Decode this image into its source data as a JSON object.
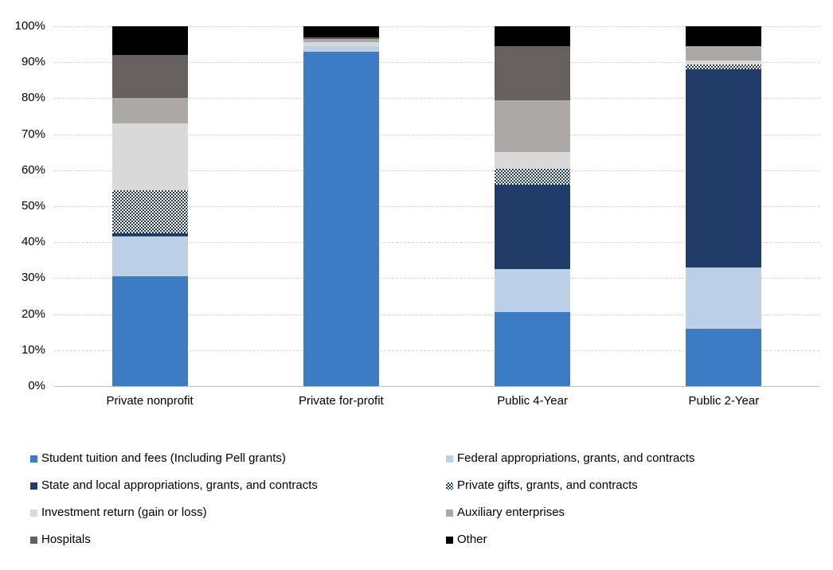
{
  "chart_data": {
    "type": "bar",
    "subtype": "100-percent-stacked-column",
    "categories": [
      "Private nonprofit",
      "Private for-profit",
      "Public 4-Year",
      "Public 2-Year"
    ],
    "series": [
      {
        "name": "Student tuition and fees (Including Pell grants)",
        "color": "#3b7cc4",
        "pattern": "solid",
        "values": [
          30.5,
          93.0,
          20.5,
          16.0
        ]
      },
      {
        "name": "Federal appropriations, grants, and contracts",
        "color": "#bcd0e8",
        "pattern": "solid",
        "values": [
          11.0,
          1.5,
          12.0,
          17.0
        ]
      },
      {
        "name": "State and local appropriations, grants, and contracts",
        "color": "#203c68",
        "pattern": "solid",
        "values": [
          1.0,
          0.0,
          23.5,
          55.0
        ]
      },
      {
        "name": "Private gifts, grants, and contracts",
        "color": "#203c68",
        "pattern": "checker",
        "values": [
          12.0,
          0.0,
          4.5,
          1.5
        ]
      },
      {
        "name": "Investment return (gain or loss)",
        "color": "#d9d9d9",
        "pattern": "solid",
        "values": [
          18.5,
          1.0,
          4.5,
          1.0
        ]
      },
      {
        "name": "Auxiliary enterprises",
        "color": "#aca8a7",
        "pattern": "solid",
        "values": [
          7.0,
          1.0,
          14.5,
          4.0
        ]
      },
      {
        "name": "Hospitals",
        "color": "#666160",
        "pattern": "solid",
        "values": [
          12.0,
          0.5,
          15.0,
          0.0
        ]
      },
      {
        "name": "Other",
        "color": "#000000",
        "pattern": "solid",
        "values": [
          8.0,
          3.0,
          5.5,
          5.5
        ]
      }
    ],
    "y_ticks": [
      "0%",
      "10%",
      "20%",
      "30%",
      "40%",
      "50%",
      "60%",
      "70%",
      "80%",
      "90%",
      "100%"
    ],
    "ylim": [
      0,
      100
    ],
    "grid": true,
    "legend_position": "bottom",
    "legend_columns": 2
  }
}
